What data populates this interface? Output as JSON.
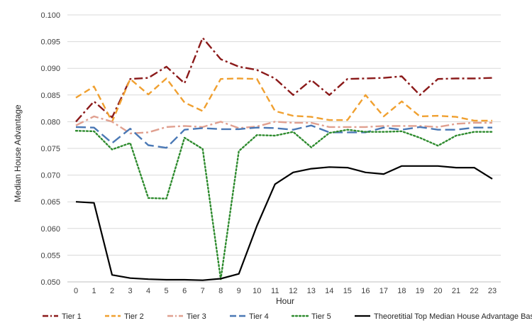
{
  "chart_data": {
    "type": "line",
    "xlabel": "Hour",
    "ylabel": "Median House Advantage",
    "ylim": [
      0.05,
      0.1
    ],
    "ytick_step": 0.005,
    "yticks": [
      "0.050",
      "0.055",
      "0.060",
      "0.065",
      "0.070",
      "0.075",
      "0.080",
      "0.085",
      "0.090",
      "0.095",
      "0.100"
    ],
    "x": [
      0,
      1,
      2,
      3,
      4,
      5,
      6,
      7,
      8,
      9,
      10,
      11,
      12,
      13,
      14,
      15,
      16,
      17,
      18,
      19,
      20,
      21,
      22,
      23
    ],
    "xtick_labels": [
      "0",
      "1",
      "2",
      "3",
      "4",
      "5",
      "6",
      "7",
      "8",
      "9",
      "10",
      "11",
      "12",
      "13",
      "14",
      "15",
      "16",
      "17",
      "18",
      "19",
      "20",
      "21",
      "22",
      "23"
    ],
    "grid": "horizontal",
    "legend_position": "bottom",
    "series": [
      {
        "name": "Tier 1",
        "color": "#8b1a1a",
        "dash": "dash-dot",
        "values": [
          0.08,
          0.0838,
          0.0808,
          0.088,
          0.0882,
          0.0903,
          0.0872,
          0.0957,
          0.0917,
          0.0903,
          0.0897,
          0.0881,
          0.085,
          0.0878,
          0.085,
          0.088,
          0.0881,
          0.0882,
          0.0885,
          0.085,
          0.088,
          0.0881,
          0.0881,
          0.0882
        ]
      },
      {
        "name": "Tier 2",
        "color": "#f0a030",
        "dash": "dashed",
        "values": [
          0.0845,
          0.0866,
          0.08,
          0.088,
          0.0851,
          0.0881,
          0.0836,
          0.082,
          0.088,
          0.0881,
          0.088,
          0.082,
          0.0811,
          0.0809,
          0.0803,
          0.0803,
          0.085,
          0.081,
          0.0838,
          0.081,
          0.0811,
          0.0809,
          0.0802,
          0.0802
        ]
      },
      {
        "name": "Tier 3",
        "color": "#e0a090",
        "dash": "dash-dot",
        "values": [
          0.0793,
          0.081,
          0.08,
          0.0778,
          0.078,
          0.079,
          0.0792,
          0.079,
          0.08,
          0.0788,
          0.0791,
          0.08,
          0.0798,
          0.0798,
          0.079,
          0.079,
          0.079,
          0.0792,
          0.0792,
          0.0792,
          0.079,
          0.0796,
          0.0798,
          0.0798
        ]
      },
      {
        "name": "Tier 4",
        "color": "#4a78b5",
        "dash": "long-dash",
        "values": [
          0.079,
          0.0789,
          0.076,
          0.0787,
          0.0756,
          0.0751,
          0.0785,
          0.0788,
          0.0786,
          0.0786,
          0.0789,
          0.0788,
          0.0785,
          0.0793,
          0.078,
          0.078,
          0.078,
          0.0789,
          0.0785,
          0.079,
          0.0785,
          0.0785,
          0.0789,
          0.0789
        ]
      },
      {
        "name": "Tier 5",
        "color": "#2e8b2e",
        "dash": "dotted",
        "values": [
          0.0783,
          0.0782,
          0.0748,
          0.076,
          0.0657,
          0.0656,
          0.077,
          0.0749,
          0.0505,
          0.0745,
          0.0775,
          0.0774,
          0.0781,
          0.0752,
          0.0779,
          0.0785,
          0.0781,
          0.0781,
          0.0782,
          0.077,
          0.0755,
          0.0774,
          0.0781,
          0.0781
        ]
      },
      {
        "name": "Theoretitial Top Median House Advantage Based on Traffic",
        "color": "#000000",
        "dash": "solid",
        "values": [
          0.065,
          0.0648,
          0.0513,
          0.0507,
          0.0505,
          0.0504,
          0.0504,
          0.0503,
          0.0506,
          0.0515,
          0.0605,
          0.0683,
          0.0705,
          0.0712,
          0.0715,
          0.0714,
          0.0705,
          0.0702,
          0.0717,
          0.0717,
          0.0717,
          0.0714,
          0.0714,
          0.0693
        ]
      }
    ]
  }
}
